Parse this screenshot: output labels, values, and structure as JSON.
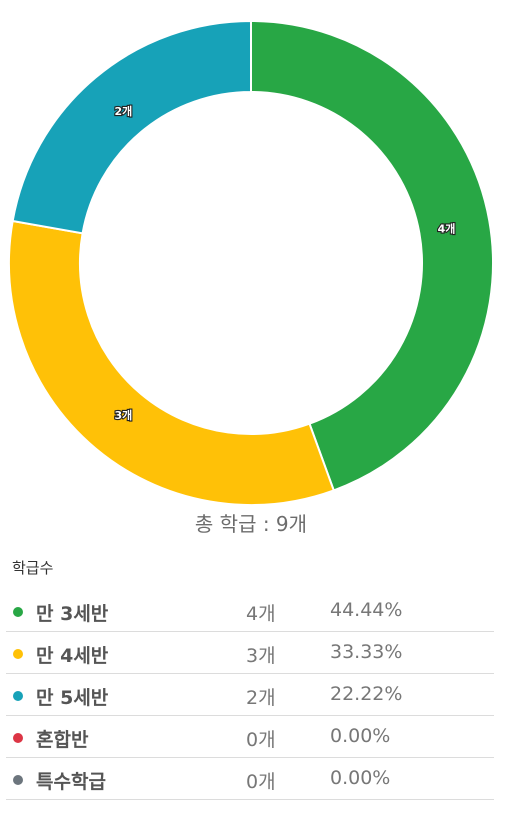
{
  "chart_data": {
    "type": "pie",
    "donut": true,
    "categories": [
      "만 3세반",
      "만 4세반",
      "만 5세반",
      "혼합반",
      "특수학급"
    ],
    "values": [
      4,
      3,
      2,
      0,
      0
    ],
    "slice_labels": [
      "4개",
      "3개",
      "2개",
      "0개",
      "0개"
    ],
    "colors": [
      "#28a745",
      "#ffc107",
      "#17a2b8",
      "#dc3545",
      "#6c757d"
    ],
    "title": "",
    "center_text": "총 학급 : 9개"
  },
  "section_title": "학급수",
  "legend": [
    {
      "name": "만 3세반",
      "count": "4개",
      "percent": "44.44%",
      "color": "#28a745"
    },
    {
      "name": "만 4세반",
      "count": "3개",
      "percent": "33.33%",
      "color": "#ffc107"
    },
    {
      "name": "만 5세반",
      "count": "2개",
      "percent": "22.22%",
      "color": "#17a2b8"
    },
    {
      "name": "혼합반",
      "count": "0개",
      "percent": "0.00%",
      "color": "#dc3545"
    },
    {
      "name": "특수학급",
      "count": "0개",
      "percent": "0.00%",
      "color": "#6c757d"
    }
  ]
}
